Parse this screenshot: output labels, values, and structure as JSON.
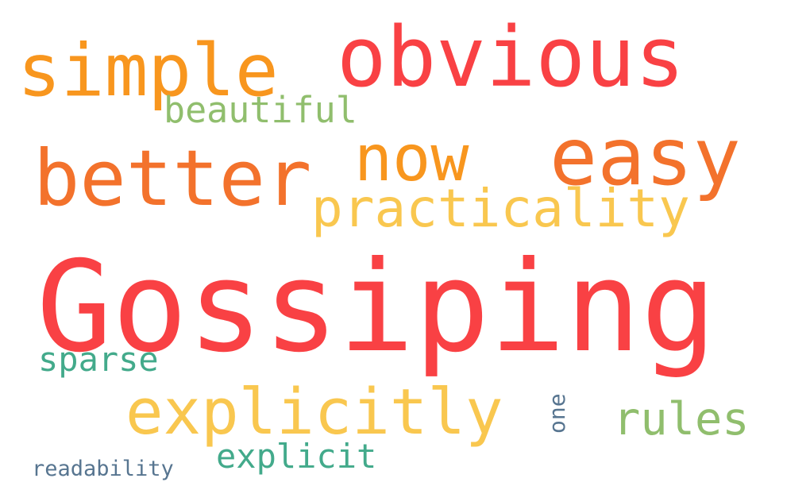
{
  "words": [
    {
      "text": "Gossiping",
      "color": "#f94144"
    },
    {
      "text": "obvious",
      "color": "#f94144"
    },
    {
      "text": "simple",
      "color": "#f8961e"
    },
    {
      "text": "easy",
      "color": "#f3722c"
    },
    {
      "text": "better",
      "color": "#f3722c"
    },
    {
      "text": "now",
      "color": "#f8961e"
    },
    {
      "text": "practicality",
      "color": "#f9c74f"
    },
    {
      "text": "explicitly",
      "color": "#f9c74f"
    },
    {
      "text": "beautiful",
      "color": "#90be6d"
    },
    {
      "text": "rules",
      "color": "#90be6d"
    },
    {
      "text": "sparse",
      "color": "#43aa8b"
    },
    {
      "text": "explicit",
      "color": "#43aa8b"
    },
    {
      "text": "one",
      "color": "#577590"
    },
    {
      "text": "readability",
      "color": "#577590"
    }
  ]
}
